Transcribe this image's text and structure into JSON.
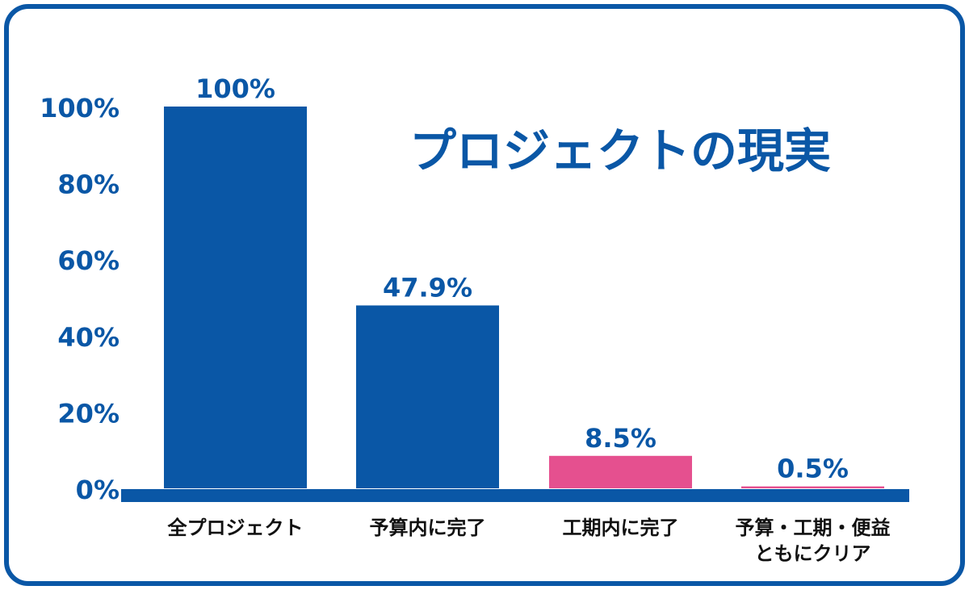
{
  "colors": {
    "frame": "#0a57a6",
    "bar_blue": "#0a57a6",
    "bar_pink": "#e5508f",
    "text_blue": "#0a57a6",
    "text_black": "#111111"
  },
  "chart_data": {
    "type": "bar",
    "title": "プロジェクトの現実",
    "categories": [
      "全プロジェクト",
      "予算内に完了",
      "工期内に完了",
      "予算・工期・便益\nともにクリア"
    ],
    "values": [
      100,
      47.9,
      8.5,
      0.5
    ],
    "value_labels": [
      "100%",
      "47.9%",
      "8.5%",
      "0.5%"
    ],
    "bar_colors": [
      "#0a57a6",
      "#0a57a6",
      "#e5508f",
      "#e5508f"
    ],
    "y_ticks": [
      0,
      20,
      40,
      60,
      80,
      100
    ],
    "y_tick_labels": [
      "0%",
      "20%",
      "40%",
      "60%",
      "80%",
      "100%"
    ],
    "ylim": [
      0,
      100
    ],
    "xlabel": "",
    "ylabel": "",
    "grid": false,
    "legend": "none"
  }
}
